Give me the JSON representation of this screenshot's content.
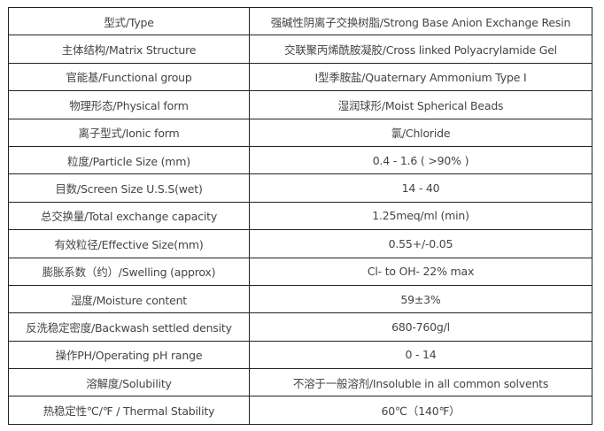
{
  "rows": [
    {
      "property": "型式/Type",
      "value": "强碱性阴离子交换树脂/Strong Base Anion Exchange Resin"
    },
    {
      "property": "主体结构/Matrix Structure",
      "value": "交联聚丙烯酰胺凝胶/Cross linked Polyacrylamide Gel"
    },
    {
      "property": "官能基/Functional group",
      "value": "I型季胺盐/Quaternary Ammonium Type I"
    },
    {
      "property": "物理形态/Physical form",
      "value": "湿润球形/Moist Spherical Beads"
    },
    {
      "property": "离子型式/Ionic form",
      "value": "氯/Chloride"
    },
    {
      "property": "粒度/Particle Size (mm)",
      "value": "0.4 - 1.6 ( >90% )"
    },
    {
      "property": "目数/Screen Size U.S.S(wet)",
      "value": "14 - 40"
    },
    {
      "property": "总交换量/Total exchange capacity",
      "value": "1.25meq/ml (min)"
    },
    {
      "property": "有效粒径/Effective Size(mm)",
      "value": "0.55+/-0.05"
    },
    {
      "property": "膨胀系数（约）/Swelling (approx)",
      "value": "Cl- to OH- 22% max"
    },
    {
      "property": "湿度/Moisture content",
      "value": "59±3%"
    },
    {
      "property": "反洗稳定密度/Backwash settled density",
      "value": "680-760g/l"
    },
    {
      "property": "操作PH/Operating pH range",
      "value": "0 - 14"
    },
    {
      "property": "溶解度/Solubility",
      "value": "不溶于一般溶剂/Insoluble in all common solvents"
    },
    {
      "property": "热稳定性℃/℉ / Thermal Stability",
      "value": "60℃（140℉）"
    }
  ]
}
